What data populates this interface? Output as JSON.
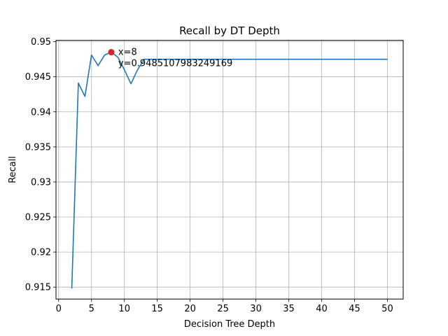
{
  "chart_data": {
    "type": "line",
    "title": "Recall by DT Depth",
    "xlabel": "Decision Tree Depth",
    "ylabel": "Recall",
    "xlim": [
      -0.4,
      52.4
    ],
    "ylim": [
      0.9133,
      0.9502
    ],
    "xticks": [
      0,
      5,
      10,
      15,
      20,
      25,
      30,
      35,
      40,
      45,
      50
    ],
    "xtick_labels": [
      "0",
      "5",
      "10",
      "15",
      "20",
      "25",
      "30",
      "35",
      "40",
      "45",
      "50"
    ],
    "yticks": [
      0.915,
      0.92,
      0.925,
      0.93,
      0.935,
      0.94,
      0.945,
      0.95
    ],
    "ytick_labels": [
      "0.915",
      "0.92",
      "0.925",
      "0.93",
      "0.935",
      "0.94",
      "0.945",
      "0.95"
    ],
    "grid": true,
    "line_color": "#1f77b4",
    "series": [
      {
        "x": [
          2,
          3,
          4,
          5,
          6,
          7,
          8,
          9,
          10,
          11,
          12,
          13,
          14,
          15,
          16,
          17,
          18,
          19,
          20,
          21,
          22,
          23,
          24,
          25,
          26,
          27,
          28,
          29,
          30,
          31,
          32,
          33,
          34,
          35,
          36,
          37,
          38,
          39,
          40,
          41,
          42,
          43,
          44,
          45,
          46,
          47,
          48,
          49,
          50
        ],
        "values": [
          0.9148,
          0.9441,
          0.9422,
          0.9481,
          0.9466,
          0.9481,
          0.94851,
          0.9478,
          0.946,
          0.944,
          0.946,
          0.9475,
          0.9475,
          0.9475,
          0.9475,
          0.9475,
          0.9475,
          0.9475,
          0.9475,
          0.9475,
          0.9475,
          0.9475,
          0.9475,
          0.9475,
          0.9475,
          0.9475,
          0.9475,
          0.9475,
          0.9475,
          0.9475,
          0.9475,
          0.9475,
          0.9475,
          0.9475,
          0.9475,
          0.9475,
          0.9475,
          0.9475,
          0.9475,
          0.9475,
          0.9475,
          0.9475,
          0.9475,
          0.9475,
          0.9475,
          0.9475,
          0.9475,
          0.9475,
          0.9475
        ]
      }
    ],
    "highlight": {
      "x": 8,
      "y": 0.94851,
      "color": "#d62728",
      "label_x": "x=8",
      "label_y": "y=0.9485107983249169"
    }
  }
}
